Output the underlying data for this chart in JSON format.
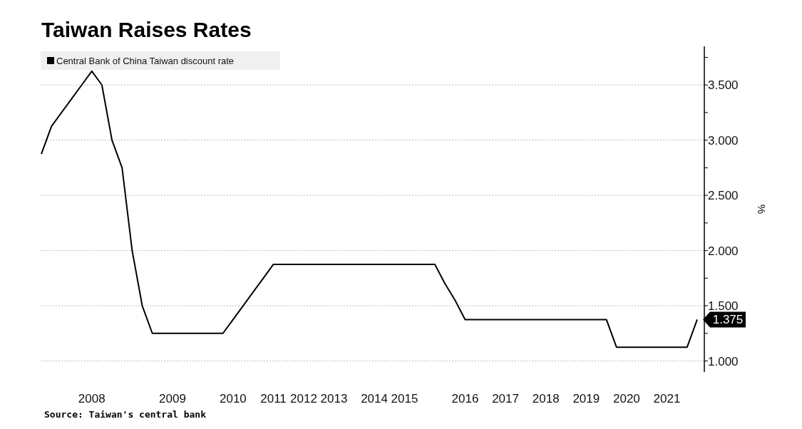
{
  "chart_data": {
    "type": "line",
    "title": "Taiwan Raises Rates",
    "ylabel": "%",
    "annotations": [
      "Source: Taiwan's central bank"
    ],
    "categories": [
      null,
      null,
      null,
      null,
      null,
      "2008",
      null,
      null,
      null,
      null,
      null,
      null,
      null,
      "2009",
      null,
      null,
      null,
      null,
      null,
      "2010",
      null,
      null,
      null,
      "2011",
      null,
      null,
      "2012",
      null,
      null,
      "2013",
      null,
      null,
      null,
      "2014",
      null,
      null,
      "2015",
      null,
      null,
      null,
      null,
      null,
      "2016",
      null,
      null,
      null,
      "2017",
      null,
      null,
      null,
      "2018",
      null,
      null,
      null,
      "2019",
      null,
      null,
      null,
      "2020",
      null,
      null,
      null,
      "2021",
      null,
      null,
      null
    ],
    "series": [
      {
        "name": "Central Bank of China Taiwan discount rate",
        "color": "#000000",
        "values": [
          2.875,
          3.125,
          3.25,
          3.375,
          3.5,
          3.625,
          3.5,
          3.0,
          2.75,
          2.0,
          1.5,
          1.25,
          1.25,
          1.25,
          1.25,
          1.25,
          1.25,
          1.25,
          1.25,
          1.375,
          1.5,
          1.625,
          1.75,
          1.875,
          1.875,
          1.875,
          1.875,
          1.875,
          1.875,
          1.875,
          1.875,
          1.875,
          1.875,
          1.875,
          1.875,
          1.875,
          1.875,
          1.875,
          1.875,
          1.875,
          1.7,
          1.55,
          1.375,
          1.375,
          1.375,
          1.375,
          1.375,
          1.375,
          1.375,
          1.375,
          1.375,
          1.375,
          1.375,
          1.375,
          1.375,
          1.375,
          1.375,
          1.125,
          1.125,
          1.125,
          1.125,
          1.125,
          1.125,
          1.125,
          1.125,
          1.375
        ],
        "value_labels": [
          null,
          null,
          null,
          null,
          null,
          null,
          null,
          null,
          null,
          null,
          null,
          null,
          null,
          null,
          null,
          null,
          null,
          null,
          null,
          null,
          null,
          null,
          null,
          null,
          null,
          null,
          null,
          null,
          null,
          null,
          null,
          null,
          null,
          null,
          null,
          null,
          null,
          null,
          null,
          null,
          null,
          null,
          null,
          null,
          null,
          null,
          null,
          null,
          null,
          null,
          null,
          null,
          null,
          null,
          null,
          null,
          null,
          null,
          null,
          null,
          null,
          null,
          null,
          null,
          null,
          "1.375"
        ]
      }
    ],
    "ylim": [
      0.9,
      3.85
    ],
    "yticks": [
      {
        "value": 1,
        "label": "1.000"
      },
      {
        "value": 1.25,
        "label": null
      },
      {
        "value": 1.5,
        "label": "1.500"
      },
      {
        "value": 1.75,
        "label": null
      },
      {
        "value": 2,
        "label": "2.000"
      },
      {
        "value": 2.25,
        "label": null
      },
      {
        "value": 2.5,
        "label": "2.500"
      },
      {
        "value": 2.75,
        "label": null
      },
      {
        "value": 3,
        "label": "3.000"
      },
      {
        "value": 3.25,
        "label": null
      },
      {
        "value": 3.5,
        "label": "3.500"
      },
      {
        "value": 3.75,
        "label": null
      }
    ],
    "grid": "y",
    "legend": "top left",
    "marker": "none",
    "line_style": "solid"
  }
}
